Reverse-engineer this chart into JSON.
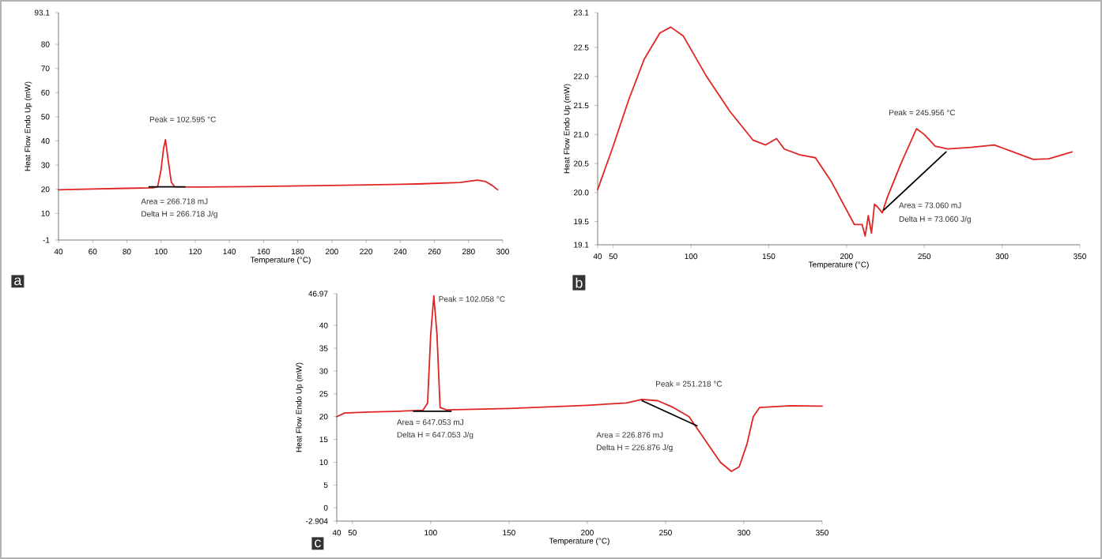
{
  "chart_data": [
    {
      "type": "line",
      "xlabel": "Temperature (°C)",
      "ylabel": "Heat Flow Endo Up (mW)",
      "xlim": [
        40,
        300
      ],
      "ylim": [
        -1,
        93.1
      ],
      "xticks": [
        40,
        60,
        80,
        100,
        120,
        140,
        160,
        180,
        200,
        220,
        240,
        260,
        280,
        300
      ],
      "yticks": [
        -1,
        10,
        20,
        30,
        40,
        50,
        60,
        70,
        80,
        93.1
      ],
      "series": [
        {
          "color": "#e02424",
          "x": [
            40,
            60,
            80,
            95,
            98,
            100,
            101.5,
            102.6,
            104,
            106,
            108,
            120,
            150,
            200,
            250,
            275,
            285,
            290,
            294,
            297
          ],
          "values": [
            19.8,
            20.1,
            20.4,
            20.6,
            21,
            28,
            37,
            40.5,
            33,
            23,
            21,
            20.9,
            21.1,
            21.6,
            22.2,
            22.8,
            23.8,
            23.2,
            21.5,
            19.8
          ]
        },
        {
          "color": "#000000",
          "x": [
            93,
            114
          ],
          "values": [
            21,
            21
          ]
        }
      ],
      "annotations": [
        "Peak = 102.595 °C",
        "Area = 266.718 mJ",
        "Delta H = 266.718 J/g",
        "a"
      ]
    },
    {
      "type": "line",
      "xlabel": "Temperature (°C)",
      "ylabel": "Heat Flow Endo Up (mW)",
      "xlim": [
        40,
        350
      ],
      "ylim": [
        19.1,
        23.1
      ],
      "xticks": [
        40,
        50,
        100,
        150,
        200,
        250,
        300,
        350
      ],
      "yticks": [
        19.1,
        19.5,
        {
          "value": 20,
          "label": "20.0"
        },
        20.5,
        {
          "value": 21,
          "label": "21.0"
        },
        21.5,
        {
          "value": 22,
          "label": "22.0"
        },
        22.5,
        23.1
      ],
      "series": [
        {
          "color": "#e02424",
          "x": [
            40,
            50,
            60,
            70,
            80,
            87,
            95,
            110,
            125,
            140,
            148,
            155,
            160,
            170,
            180,
            190,
            200,
            205,
            210,
            212,
            214,
            216,
            218,
            220,
            223,
            226,
            235,
            245,
            250,
            257,
            265,
            280,
            295,
            305,
            320,
            330,
            345
          ],
          "values": [
            20.05,
            20.8,
            21.6,
            22.3,
            22.75,
            22.85,
            22.7,
            22.0,
            21.4,
            20.9,
            20.82,
            20.93,
            20.75,
            20.65,
            20.6,
            20.2,
            19.7,
            19.45,
            19.45,
            19.25,
            19.6,
            19.3,
            19.8,
            19.75,
            19.65,
            19.9,
            20.5,
            21.1,
            21.0,
            20.8,
            20.75,
            20.78,
            20.82,
            20.72,
            20.57,
            20.58,
            20.7
          ]
        },
        {
          "color": "#000000",
          "x": [
            224,
            264
          ],
          "values": [
            19.7,
            20.7
          ]
        }
      ],
      "annotations": [
        "Peak = 245.956 °C",
        "Area = 73.060 mJ",
        "Delta H = 73.060 J/g",
        "b"
      ]
    },
    {
      "type": "line",
      "xlabel": "Temperature (°C)",
      "ylabel": "Heat Flow Endo Up (mW)",
      "xlim": [
        40,
        350
      ],
      "ylim": [
        -2.904,
        46.97
      ],
      "xticks": [
        40,
        50,
        100,
        150,
        200,
        250,
        300,
        350
      ],
      "yticks": [
        -2.904,
        0,
        5,
        10,
        15,
        20,
        25,
        30,
        35,
        40,
        46.97
      ],
      "series": [
        {
          "color": "#e02424",
          "x": [
            40,
            45,
            60,
            80,
            95,
            98,
            100,
            102,
            104,
            106,
            110,
            150,
            200,
            225,
            235,
            245,
            255,
            265,
            275,
            285,
            292,
            297,
            302,
            306,
            310,
            330,
            350
          ],
          "values": [
            20,
            20.8,
            21,
            21.2,
            21.4,
            23,
            38,
            46.5,
            38,
            22,
            21.5,
            21.8,
            22.5,
            23,
            23.8,
            23.5,
            22,
            20,
            15,
            10,
            8,
            9,
            14,
            20,
            22,
            22.4,
            22.3
          ]
        },
        {
          "color": "#000000",
          "x": [
            89,
            113
          ],
          "values": [
            21.2,
            21.2
          ]
        },
        {
          "color": "#000000",
          "x": [
            235,
            270
          ],
          "values": [
            23.5,
            18
          ]
        }
      ],
      "annotations": [
        "Peak = 102.058 °C",
        "Area = 647.053 mJ",
        "Delta H = 647.053 J/g",
        "Peak = 251.218 °C",
        "Area = 226.876 mJ",
        "Delta H = 226.876 J/g",
        "c"
      ]
    }
  ]
}
